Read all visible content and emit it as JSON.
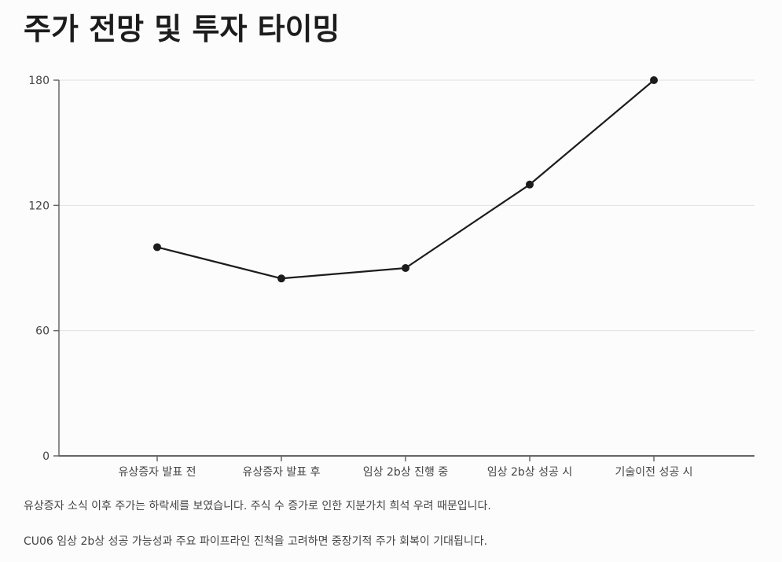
{
  "title": "주가 전망 및 투자 타이밍",
  "chart_data": {
    "type": "line",
    "categories": [
      "유상증자 발표 전",
      "유상증자 발표 후",
      "임상 2b상 진행 중",
      "임상 2b상 성공 시",
      "기술이전 성공 시"
    ],
    "values": [
      100,
      85,
      90,
      130,
      180
    ],
    "ylim": [
      0,
      180
    ],
    "yticks": [
      0,
      60,
      120,
      180
    ],
    "grid": true,
    "line_color": "#1c1c1c",
    "grid_color": "#e0e0e0",
    "axis_color": "#666666"
  },
  "notes": [
    "유상증자 소식 이후 주가는 하락세를 보였습니다. 주식 수 증가로 인한 지분가치 희석 우려 때문입니다.",
    "CU06 임상 2b상 성공 가능성과 주요 파이프라인 진척을 고려하면 중장기적 주가 회복이 기대됩니다."
  ]
}
